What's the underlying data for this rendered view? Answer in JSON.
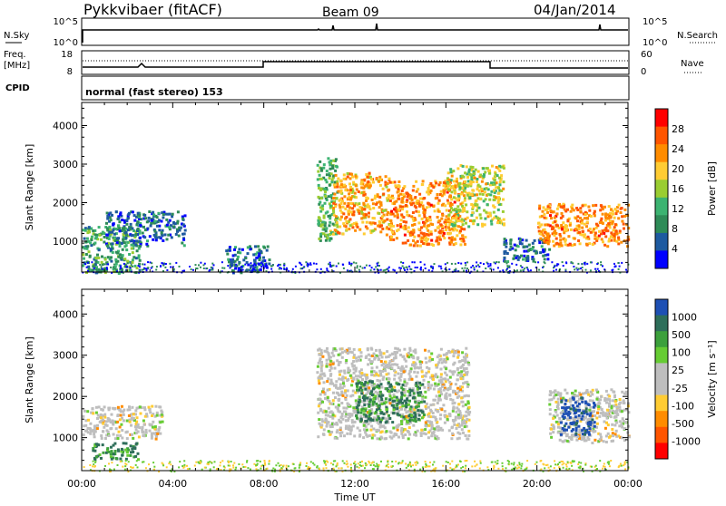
{
  "header": {
    "station": "Pykkvibaer (fitACF)",
    "beam": "Beam 09",
    "date": "04/Jan/2014"
  },
  "top_panels": {
    "nsky_label": "N.Sky",
    "nsky_ticks": [
      "10^5",
      "10^0"
    ],
    "nsearch_label": "N.Search",
    "nsearch_ticks": [
      "10^5",
      "10^0"
    ],
    "freq_label": "Freq.",
    "freq_unit": "[MHz]",
    "freq_ticks": [
      "18",
      "8"
    ],
    "nave_label": "Nave",
    "nave_ticks": [
      "60",
      "0"
    ],
    "cpid_label": "CPID",
    "mode_text": "normal (fast stereo) 153"
  },
  "chart_data": [
    {
      "type": "heatmap",
      "name": "power",
      "ylabel": "Slant Range [km]",
      "ylim": [
        200,
        4600
      ],
      "yticks": [
        1000,
        2000,
        3000,
        4000
      ],
      "xlim": [
        0,
        24
      ],
      "colorbar": {
        "label": "Power [dB]",
        "ticks": [
          "28",
          "24",
          "20",
          "16",
          "12",
          "8",
          "4"
        ],
        "colors": [
          "#ff0000",
          "#ff5500",
          "#ff8c00",
          "#ffcc33",
          "#9acd32",
          "#3cb371",
          "#2e8b57",
          "#1e5aa0",
          "#0000ff"
        ]
      },
      "regions": [
        {
          "t0": 0.0,
          "t1": 2.5,
          "r0": 200,
          "r1": 1400,
          "level": 12
        },
        {
          "t0": 1.0,
          "t1": 4.5,
          "r0": 900,
          "r1": 1800,
          "level": 8
        },
        {
          "t0": 6.3,
          "t1": 8.2,
          "r0": 200,
          "r1": 900,
          "level": 8
        },
        {
          "t0": 10.3,
          "t1": 11.2,
          "r0": 1000,
          "r1": 3200,
          "level": 14
        },
        {
          "t0": 11.0,
          "t1": 13.5,
          "r0": 1200,
          "r1": 2800,
          "level": 22
        },
        {
          "t0": 13.5,
          "t1": 16.8,
          "r0": 900,
          "r1": 2600,
          "level": 24
        },
        {
          "t0": 16.0,
          "t1": 18.5,
          "r0": 1400,
          "r1": 3000,
          "level": 18
        },
        {
          "t0": 18.5,
          "t1": 20.5,
          "r0": 500,
          "r1": 1100,
          "level": 8
        },
        {
          "t0": 20.0,
          "t1": 24.0,
          "r0": 900,
          "r1": 2000,
          "level": 24
        }
      ]
    },
    {
      "type": "heatmap",
      "name": "velocity",
      "ylabel": "Slant Range [km]",
      "ylim": [
        200,
        4600
      ],
      "yticks": [
        1000,
        2000,
        3000,
        4000
      ],
      "xlim": [
        0,
        24
      ],
      "colorbar": {
        "label": "Velocity [m s⁻¹]",
        "ticks": [
          "1000",
          "500",
          "100",
          "25",
          "-25",
          "-100",
          "-500",
          "-1000"
        ],
        "colors": [
          "#1e50b4",
          "#2e6e5a",
          "#3ca03c",
          "#66cc33",
          "#bebebe",
          "#bebebe",
          "#ffcc33",
          "#ff8c00",
          "#ff5500",
          "#ff0000"
        ]
      },
      "regions": [
        {
          "t0": 0.0,
          "t1": 3.5,
          "r0": 1000,
          "r1": 1800,
          "level": 0
        },
        {
          "t0": 0.3,
          "t1": 2.5,
          "r0": 500,
          "r1": 900,
          "level": 300
        },
        {
          "t0": 10.3,
          "t1": 17.0,
          "r0": 1000,
          "r1": 3200,
          "level": 0
        },
        {
          "t0": 12.0,
          "t1": 15.0,
          "r0": 1400,
          "r1": 2400,
          "level": 150
        },
        {
          "t0": 20.5,
          "t1": 24.0,
          "r0": 900,
          "r1": 2200,
          "level": 0
        },
        {
          "t0": 21.0,
          "t1": 22.5,
          "r0": 1100,
          "r1": 2000,
          "level": 900
        }
      ]
    }
  ],
  "x_axis": {
    "ticks": [
      "00:00",
      "04:00",
      "08:00",
      "12:00",
      "16:00",
      "20:00",
      "00:00"
    ],
    "label": "Time UT"
  }
}
